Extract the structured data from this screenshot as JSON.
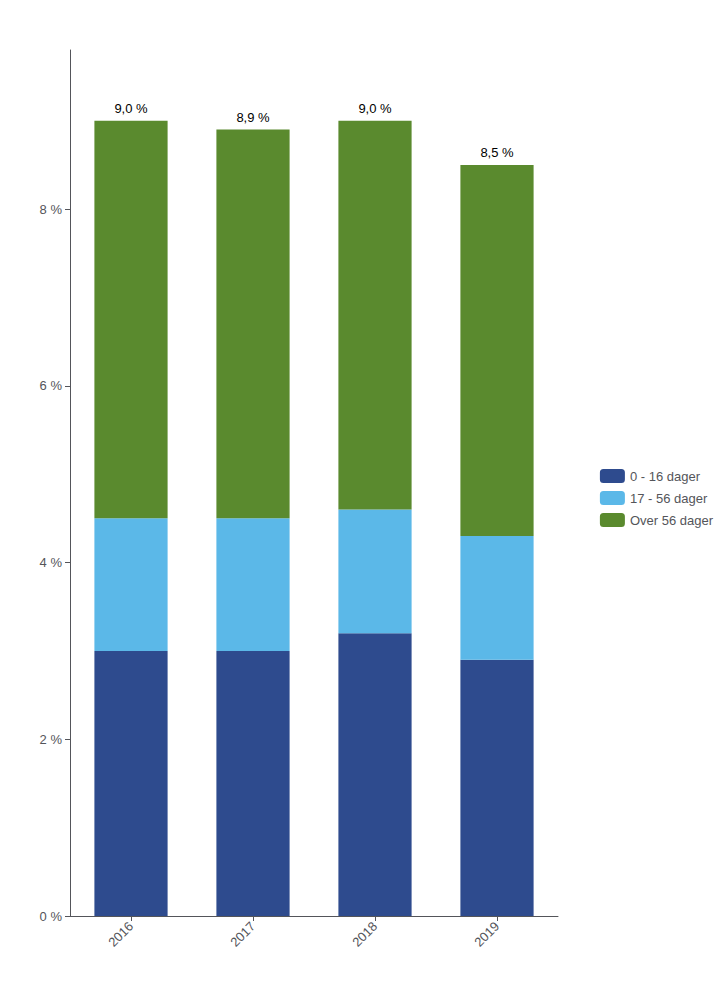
{
  "chart_data": {
    "type": "bar",
    "stacked": true,
    "categories": [
      "2016",
      "2017",
      "2018",
      "2019"
    ],
    "series": [
      {
        "name": "0 - 16 dager",
        "color": "#2E4B8E",
        "values": [
          3.0,
          3.0,
          3.2,
          2.9
        ]
      },
      {
        "name": "17 - 56 dager",
        "color": "#5BB8E8",
        "values": [
          1.5,
          1.5,
          1.4,
          1.4
        ]
      },
      {
        "name": "Over 56 dager",
        "color": "#5A8A2E",
        "values": [
          4.5,
          4.4,
          4.4,
          4.2
        ]
      }
    ],
    "ylim": [
      0,
      9.8
    ],
    "yticks": [
      {
        "value": 0,
        "label": "0 %"
      },
      {
        "value": 2,
        "label": "2 %"
      },
      {
        "value": 4,
        "label": "4 %"
      },
      {
        "value": 6,
        "label": "6 %"
      },
      {
        "value": 8,
        "label": "8 %"
      }
    ],
    "grid": false,
    "legend": "right",
    "annotations": [
      {
        "x": "2016",
        "y": 9.0,
        "text": "9,0 %"
      },
      {
        "x": "2017",
        "y": 8.9,
        "text": "8,9 %"
      },
      {
        "x": "2018",
        "y": 9.0,
        "text": "9,0 %"
      },
      {
        "x": "2019",
        "y": 8.5,
        "text": "8,5 %"
      }
    ]
  }
}
